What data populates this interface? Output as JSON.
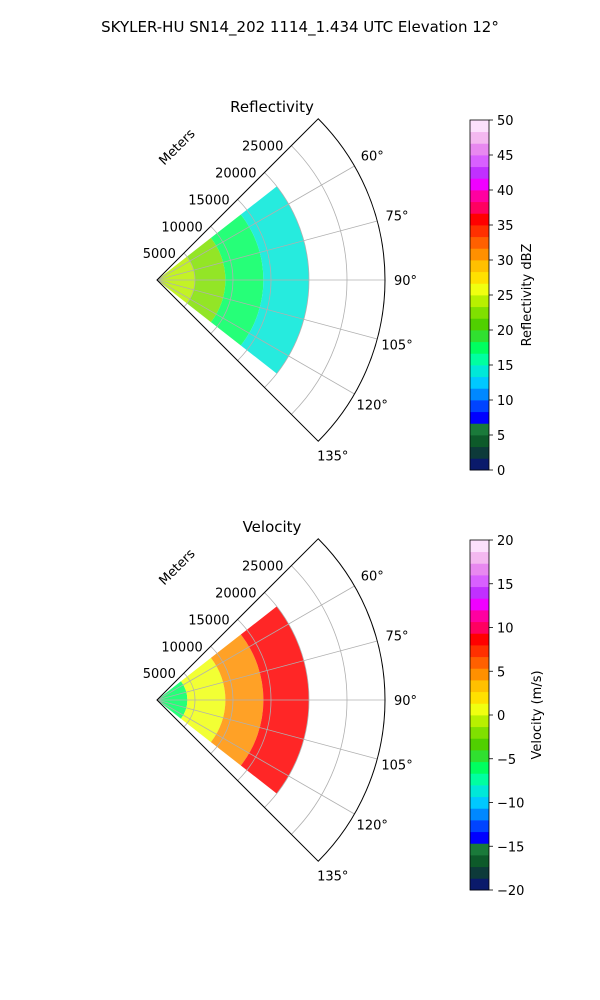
{
  "figure": {
    "title": "SKYLER-HU  SN14_202  1114_1.434 UTC Elevation 12°"
  },
  "chart_data": [
    {
      "type": "heatmap",
      "projection": "polar-sector",
      "title": "Reflectivity",
      "radial_label": "Meters",
      "radial_ticks": [
        5000,
        10000,
        15000,
        20000,
        25000
      ],
      "radial_tick_labels": [
        "5000",
        "10000",
        "15000",
        "20000",
        "25000"
      ],
      "rlim": [
        0,
        30000
      ],
      "theta_range_deg": [
        45,
        135
      ],
      "theta_ticks": [
        60,
        75,
        90,
        105,
        120,
        135
      ],
      "theta_tick_labels": [
        "60°",
        "75°",
        "90°",
        "105°",
        "120°",
        "135°"
      ],
      "grid": true,
      "colorbar": {
        "label": "Reflectivity dBZ",
        "range": [
          0,
          50
        ],
        "ticks": [
          0,
          5,
          10,
          15,
          20,
          25,
          30,
          35,
          40,
          45,
          50
        ],
        "tick_labels": [
          "0",
          "5",
          "10",
          "15",
          "20",
          "25",
          "30",
          "35",
          "40",
          "45",
          "50"
        ],
        "colors": [
          "#0a1a6b",
          "#0d3a3a",
          "#0d5a2a",
          "#1a7a3a",
          "#0000ff",
          "#0044ff",
          "#0088ff",
          "#00c8ff",
          "#00e8d8",
          "#00ffa0",
          "#00ff60",
          "#30e030",
          "#50d000",
          "#80e000",
          "#b8f000",
          "#f0ff10",
          "#ffe000",
          "#ffc000",
          "#ff9000",
          "#ff6000",
          "#ff3000",
          "#ff0000",
          "#ff0060",
          "#ff00a0",
          "#f000ff",
          "#c030ff",
          "#d860ff",
          "#e888f0",
          "#f4b8f0",
          "#fce0fc"
        ]
      },
      "field_extent_m": [
        0,
        20000
      ],
      "field_values_dbz": [
        {
          "range_m": [
            0,
            5000
          ],
          "value": 24
        },
        {
          "range_m": [
            5000,
            9000
          ],
          "value": 22
        },
        {
          "range_m": [
            9000,
            14000
          ],
          "value": 18
        },
        {
          "range_m": [
            14000,
            20000
          ],
          "value": 14
        }
      ]
    },
    {
      "type": "heatmap",
      "projection": "polar-sector",
      "title": "Velocity",
      "radial_label": "Meters",
      "radial_ticks": [
        5000,
        10000,
        15000,
        20000,
        25000
      ],
      "radial_tick_labels": [
        "5000",
        "10000",
        "15000",
        "20000",
        "25000"
      ],
      "rlim": [
        0,
        30000
      ],
      "theta_range_deg": [
        45,
        135
      ],
      "theta_ticks": [
        60,
        75,
        90,
        105,
        120,
        135
      ],
      "theta_tick_labels": [
        "60°",
        "75°",
        "90°",
        "105°",
        "120°",
        "135°"
      ],
      "grid": true,
      "colorbar": {
        "label": "Velocity (m/s)",
        "range": [
          -20,
          20
        ],
        "ticks": [
          -20,
          -15,
          -10,
          -5,
          0,
          5,
          10,
          15,
          20
        ],
        "tick_labels": [
          "−20",
          "−15",
          "−10",
          "−5",
          "0",
          "5",
          "10",
          "15",
          "20"
        ],
        "colors": [
          "#0a1a6b",
          "#0d3a3a",
          "#0d5a2a",
          "#1a7a3a",
          "#0000ff",
          "#0044ff",
          "#0088ff",
          "#00c8ff",
          "#00e8d8",
          "#00ffa0",
          "#00ff60",
          "#30e030",
          "#50d000",
          "#80e000",
          "#b8f000",
          "#f0ff10",
          "#ffe000",
          "#ffc000",
          "#ff9000",
          "#ff6000",
          "#ff3000",
          "#ff0000",
          "#ff0060",
          "#ff00a0",
          "#f000ff",
          "#c030ff",
          "#d860ff",
          "#e888f0",
          "#f4b8f0",
          "#fce0fc"
        ]
      },
      "field_extent_m": [
        0,
        20000
      ],
      "field_values_ms": [
        {
          "range_m": [
            0,
            4000
          ],
          "value": -6
        },
        {
          "range_m": [
            4000,
            9000
          ],
          "value": 0
        },
        {
          "range_m": [
            9000,
            14000
          ],
          "value": 5
        },
        {
          "range_m": [
            14000,
            20000
          ],
          "value": 9
        }
      ]
    }
  ]
}
